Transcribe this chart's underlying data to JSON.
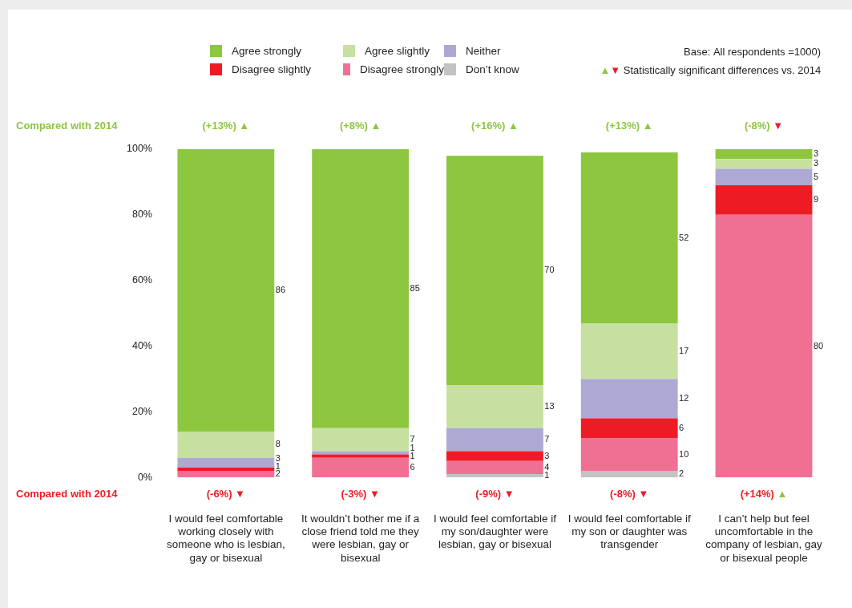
{
  "chart_data": {
    "type": "bar",
    "stacked": true,
    "legend": "top",
    "grid": false,
    "data_labels": true,
    "categories": [
      "I would feel comfortable working closely with someone who is lesbian, gay or bisexual",
      "It wouldn’t bother me if a close friend told me they were lesbian, gay or bisexual",
      "I would feel comfortable if my son/daughter were lesbian, gay or bisexual",
      "I would feel comfortable if my son or daughter was transgender",
      "I can’t help but feel uncomfortable in the company of lesbian, gay or bisexual people"
    ],
    "ylim": [
      0,
      100
    ],
    "yticks": [
      {
        "value": 0,
        "label": "0%"
      },
      {
        "value": 20,
        "label": "20%"
      },
      {
        "value": 40,
        "label": "40%"
      },
      {
        "value": 60,
        "label": "60%"
      },
      {
        "value": 80,
        "label": "80%"
      },
      {
        "value": 100,
        "label": "100%"
      }
    ],
    "series": [
      {
        "name": "Don’t know",
        "color": "#c3c3c3",
        "values": [
          null,
          null,
          1,
          2,
          null
        ]
      },
      {
        "name": "Disagree strongly",
        "color": "#f07094",
        "values": [
          2,
          6,
          4,
          10,
          80
        ]
      },
      {
        "name": "Disagree slightly",
        "color": "#ed1c24",
        "values": [
          1,
          1,
          3,
          6,
          9
        ]
      },
      {
        "name": "Neither",
        "color": "#ada8d4",
        "values": [
          3,
          1,
          7,
          12,
          5
        ]
      },
      {
        "name": "Agree slightly",
        "color": "#c6e0a0",
        "values": [
          8,
          7,
          13,
          17,
          3
        ]
      },
      {
        "name": "Agree strongly",
        "color": "#8dc63f",
        "values": [
          86,
          85,
          70,
          52,
          3
        ]
      }
    ],
    "annotations": [
      "Base: All respondents =1000)",
      "▲▼ Statistically significant differences vs. 2014",
      "Compared with 2014",
      "(+13%) ▲",
      "(+8%) ▲",
      "(+16%) ▲",
      "(+13%) ▲",
      "(-8%) ▼",
      "Compared with 2014",
      "(-6%) ▼",
      "(-3%) ▼",
      "(-9%) ▼",
      "(-8%) ▼",
      "(+14%) ▲"
    ]
  }
}
